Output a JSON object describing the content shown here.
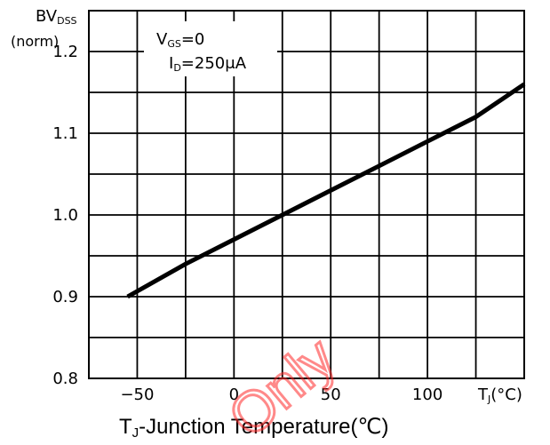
{
  "chart_data": {
    "type": "line",
    "ylabel_main": "BV",
    "ylabel_sub": "DSS",
    "ylabel_unit": "(norm)",
    "annotation": {
      "vgs_main": "V",
      "vgs_sub": "GS",
      "vgs_value": "=0",
      "id_main": "I",
      "id_sub": "D",
      "id_value": "=250μA"
    },
    "x_unit_main": "T",
    "x_unit_sub": "J",
    "x_unit_rest": "(°C)",
    "xlabel_main": "T",
    "xlabel_sub": "J",
    "xlabel_rest": "-Junction Temperature(℃)",
    "xlim": [
      -75,
      150
    ],
    "ylim": [
      0.8,
      1.25
    ],
    "x_ticks": [
      {
        "value": -50,
        "label": "−50"
      },
      {
        "value": 0,
        "label": "0"
      },
      {
        "value": 50,
        "label": "50"
      },
      {
        "value": 100,
        "label": "100"
      }
    ],
    "y_ticks": [
      {
        "value": 0.8,
        "label": "0.8"
      },
      {
        "value": 0.9,
        "label": "0.9"
      },
      {
        "value": 1.0,
        "label": "1.0"
      },
      {
        "value": 1.1,
        "label": "1.1"
      },
      {
        "value": 1.2,
        "label": "1.2"
      }
    ],
    "grid": true,
    "series": [
      {
        "x": [
          -55,
          -25,
          0,
          25,
          50,
          75,
          100,
          125,
          150
        ],
        "y": [
          0.9,
          0.94,
          0.97,
          1.0,
          1.03,
          1.06,
          1.09,
          1.12,
          1.16
        ]
      }
    ],
    "watermark": "Only"
  }
}
